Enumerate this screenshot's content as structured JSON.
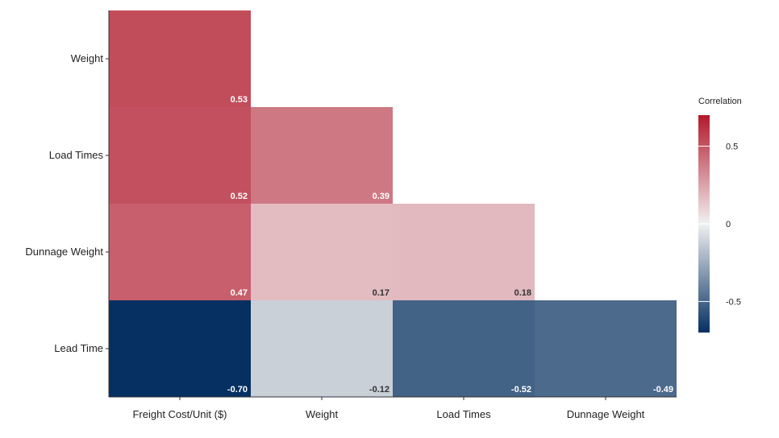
{
  "chart_data": {
    "type": "heatmap",
    "title": "",
    "x_categories": [
      "Freight Cost/Unit ($)",
      "Weight",
      "Load Times",
      "Dunnage Weight"
    ],
    "y_categories": [
      "Weight",
      "Load Times",
      "Dunnage Weight",
      "Lead Time"
    ],
    "cells": [
      {
        "row": "Weight",
        "col": "Freight Cost/Unit ($)",
        "value": 0.53,
        "label": "0.53"
      },
      {
        "row": "Load Times",
        "col": "Freight Cost/Unit ($)",
        "value": 0.52,
        "label": "0.52"
      },
      {
        "row": "Load Times",
        "col": "Weight",
        "value": 0.39,
        "label": "0.39"
      },
      {
        "row": "Dunnage Weight",
        "col": "Freight Cost/Unit ($)",
        "value": 0.47,
        "label": "0.47"
      },
      {
        "row": "Dunnage Weight",
        "col": "Weight",
        "value": 0.17,
        "label": "0.17"
      },
      {
        "row": "Dunnage Weight",
        "col": "Load Times",
        "value": 0.18,
        "label": "0.18"
      },
      {
        "row": "Lead Time",
        "col": "Freight Cost/Unit ($)",
        "value": -0.7,
        "label": "-0.70"
      },
      {
        "row": "Lead Time",
        "col": "Weight",
        "value": -0.12,
        "label": "-0.12"
      },
      {
        "row": "Lead Time",
        "col": "Load Times",
        "value": -0.52,
        "label": "-0.52"
      },
      {
        "row": "Lead Time",
        "col": "Dunnage Weight",
        "value": -0.49,
        "label": "-0.49"
      }
    ],
    "legend": {
      "title": "Correlation",
      "range": [
        -0.7,
        0.7
      ],
      "ticks": [
        {
          "value": 0.5,
          "label": "0.5"
        },
        {
          "value": 0,
          "label": "0"
        },
        {
          "value": -0.5,
          "label": "-0.5"
        }
      ],
      "placement": "right"
    },
    "colors": {
      "positive": "#B2182B",
      "neutral": "#F1F1F1",
      "negative": "#053061",
      "label_light": "#ffffff",
      "label_dark": "#333333"
    }
  }
}
